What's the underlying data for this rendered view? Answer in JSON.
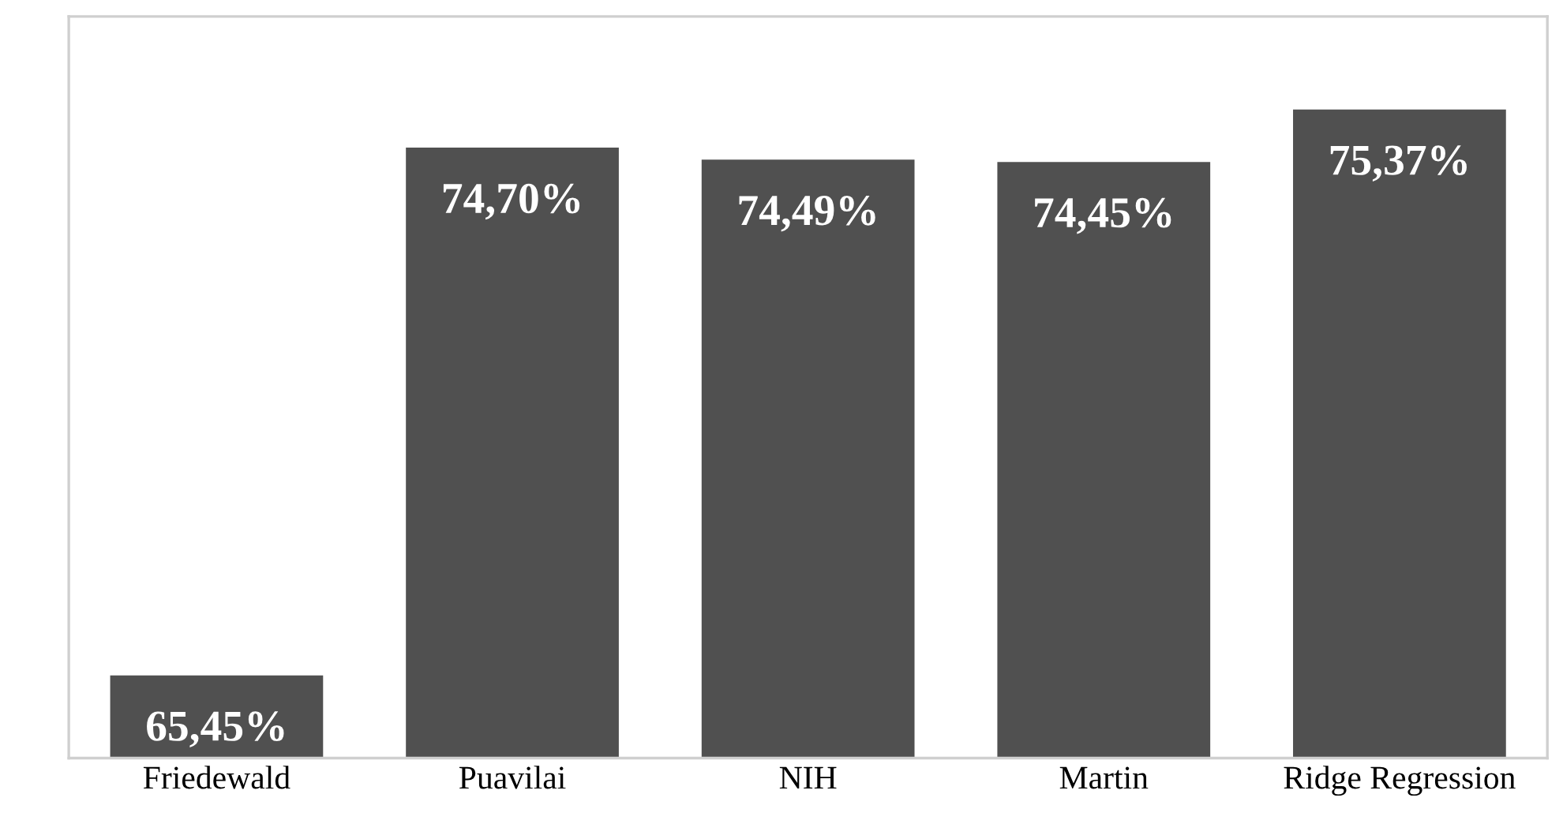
{
  "chart_data": {
    "type": "bar",
    "categories": [
      "Friedewald",
      "Puavilai",
      "NIH",
      "Martin",
      "Ridge Regression"
    ],
    "values": [
      65.45,
      74.7,
      74.49,
      74.45,
      75.37
    ],
    "value_labels": [
      "65,45%",
      "74,70%",
      "74,49%",
      "74,45%",
      "75,37%"
    ],
    "color": "#505050",
    "ylim": [
      64,
      77
    ],
    "tick_labels": "x",
    "grid": false,
    "legend": false
  }
}
